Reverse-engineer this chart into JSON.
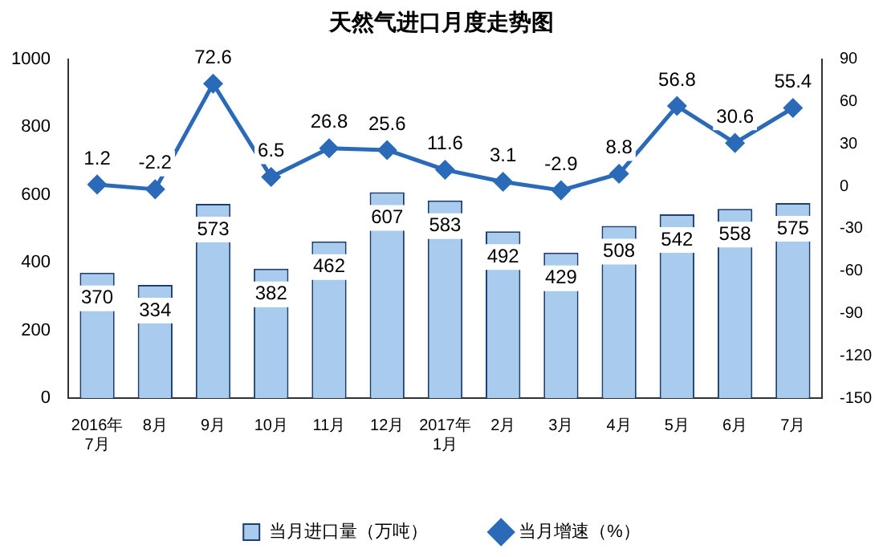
{
  "chart_data": {
    "type": "bar",
    "title": "天然气进口月度走势图",
    "categories": [
      "2016年\n7月",
      "8月",
      "9月",
      "10月",
      "11月",
      "12月",
      "2017年\n1月",
      "2月",
      "3月",
      "4月",
      "5月",
      "6月",
      "7月"
    ],
    "series": [
      {
        "name": "当月进口量（万吨）",
        "color": "#a9cbee",
        "values": [
          370,
          334,
          573,
          382,
          462,
          607,
          583,
          492,
          429,
          508,
          542,
          558,
          575
        ]
      },
      {
        "name": "当月增速（%）",
        "type": "line",
        "axis": "y2",
        "color": "#2a6ab8",
        "marker": "diamond",
        "values": [
          1.2,
          -2.2,
          72.6,
          6.5,
          26.8,
          25.6,
          11.6,
          3.1,
          -2.9,
          8.8,
          56.8,
          30.6,
          55.4
        ]
      }
    ],
    "ylim": [
      0,
      1000
    ],
    "yticks": [
      0,
      200,
      400,
      600,
      800,
      1000
    ],
    "y2lim": [
      -150,
      90
    ],
    "y2ticks": [
      -150,
      -120,
      -90,
      -60,
      -30,
      0,
      30,
      60,
      90
    ],
    "grid": false,
    "legend": "bottom",
    "data_labels": true
  }
}
